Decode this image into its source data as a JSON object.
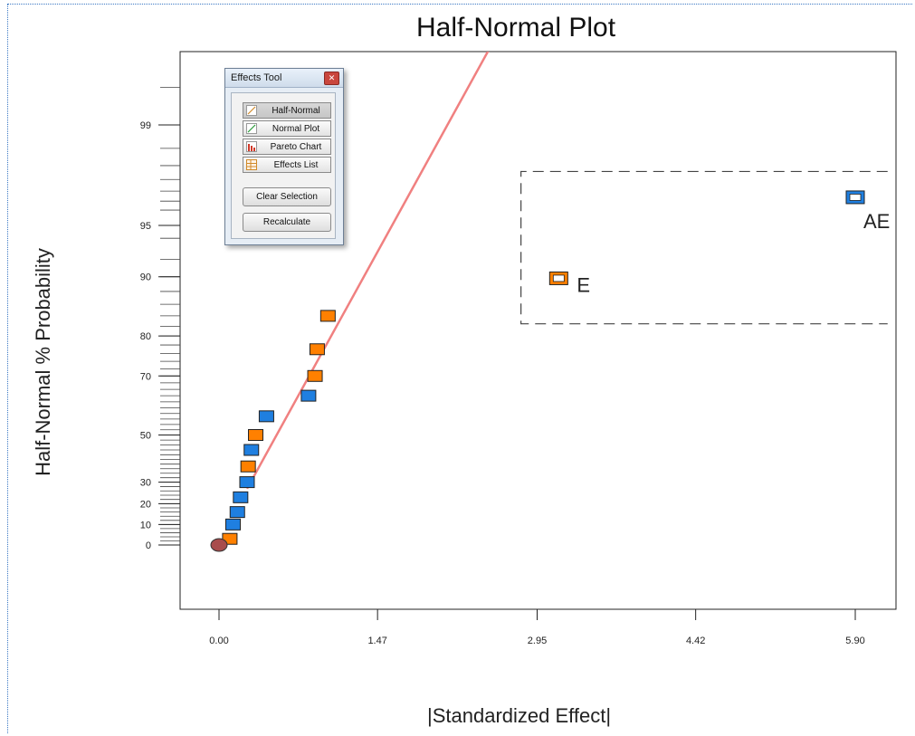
{
  "chart_data": {
    "type": "scatter",
    "title": "Half-Normal Plot",
    "xlabel": "|Standardized Effect|",
    "ylabel": "Half-Normal % Probability",
    "x_ticks": [
      "0.00",
      "1.47",
      "2.95",
      "4.42",
      "5.90"
    ],
    "x_tick_values": [
      0.0,
      1.47,
      2.95,
      4.42,
      5.9
    ],
    "xlim": [
      -0.3,
      6.2
    ],
    "y_ticks": [
      "0",
      "10",
      "20",
      "30",
      "50",
      "70",
      "80",
      "90",
      "95",
      "99"
    ],
    "y_tick_values": [
      0,
      10,
      20,
      30,
      50,
      70,
      80,
      90,
      95,
      99
    ],
    "y_scale": "half-normal probability",
    "grid": false,
    "fit_line": {
      "color": "#f08080",
      "points": [
        [
          0.26,
          27
        ],
        [
          2.37,
          99.6
        ]
      ]
    },
    "series": [
      {
        "color": "#1f7fe0",
        "points": [
          {
            "x": 0.13,
            "y": 10
          },
          {
            "x": 0.17,
            "y": 16
          },
          {
            "x": 0.2,
            "y": 23
          },
          {
            "x": 0.26,
            "y": 30
          },
          {
            "x": 0.3,
            "y": 44
          },
          {
            "x": 0.44,
            "y": 57
          },
          {
            "x": 0.83,
            "y": 64
          },
          {
            "x": 5.9,
            "y": 96.7,
            "hollow": true,
            "label": "AE"
          }
        ]
      },
      {
        "color": "#ff8000",
        "points": [
          {
            "x": 0.1,
            "y": 3
          },
          {
            "x": 0.27,
            "y": 37
          },
          {
            "x": 0.34,
            "y": 50
          },
          {
            "x": 0.89,
            "y": 70
          },
          {
            "x": 0.91,
            "y": 77
          },
          {
            "x": 1.01,
            "y": 84
          },
          {
            "x": 3.15,
            "y": 89.8,
            "hollow": true,
            "label": "E"
          }
        ]
      },
      {
        "color": "#a84c4c",
        "shape": "circle",
        "points": [
          {
            "x": 0.0,
            "y": 0
          }
        ]
      }
    ],
    "selection_box": {
      "x": [
        2.8,
        6.2
      ],
      "y": [
        82.5,
        97.8
      ]
    }
  },
  "effects_tool": {
    "title": "Effects Tool",
    "tabs": [
      {
        "label": "Half-Normal",
        "icon": "half-normal-icon",
        "active": true
      },
      {
        "label": "Normal Plot",
        "icon": "normal-plot-icon",
        "active": false
      },
      {
        "label": "Pareto Chart",
        "icon": "pareto-chart-icon",
        "active": false
      },
      {
        "label": "Effects List",
        "icon": "effects-list-icon",
        "active": false
      }
    ],
    "clear_selection": "Clear Selection",
    "recalculate": "Recalculate"
  }
}
